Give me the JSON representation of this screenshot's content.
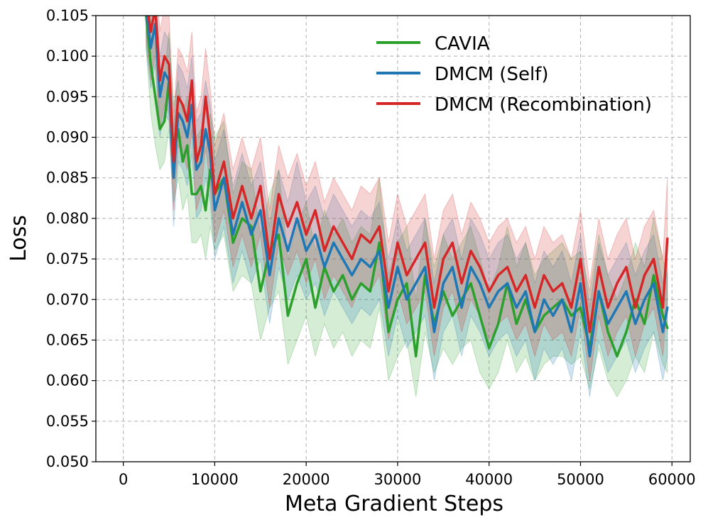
{
  "chart_data": {
    "type": "line",
    "title": "",
    "xlabel": "Meta Gradient Steps",
    "ylabel": "Loss",
    "xlim": [
      -3000,
      62000
    ],
    "ylim": [
      0.05,
      0.105
    ],
    "xticks": [
      0,
      10000,
      20000,
      30000,
      40000,
      50000,
      60000
    ],
    "xtick_labels": [
      "0",
      "10000",
      "20000",
      "30000",
      "40000",
      "50000",
      "60000"
    ],
    "yticks": [
      0.05,
      0.055,
      0.06,
      0.065,
      0.07,
      0.075,
      0.08,
      0.085,
      0.09,
      0.095,
      0.1,
      0.105
    ],
    "ytick_labels": [
      "0.050",
      "0.055",
      "0.060",
      "0.065",
      "0.070",
      "0.075",
      "0.080",
      "0.085",
      "0.090",
      "0.095",
      "0.100",
      "0.105"
    ],
    "grid": true,
    "legend_position": "top-right",
    "x": [
      2500,
      3000,
      3500,
      4000,
      4500,
      5000,
      5500,
      6000,
      6500,
      7000,
      7500,
      8000,
      8500,
      9000,
      9500,
      10000,
      11000,
      12000,
      13000,
      14000,
      15000,
      16000,
      17000,
      18000,
      19000,
      20000,
      21000,
      22000,
      23000,
      24000,
      25000,
      26000,
      27000,
      28000,
      29000,
      30000,
      31000,
      32000,
      33000,
      34000,
      35000,
      36000,
      37000,
      38000,
      39000,
      40000,
      41000,
      42000,
      43000,
      44000,
      45000,
      46000,
      47000,
      48000,
      49000,
      50000,
      51000,
      52000,
      53000,
      54000,
      55000,
      56000,
      57000,
      58000,
      59000,
      59500
    ],
    "series": [
      {
        "name": "CAVIA",
        "color": "#2ca02c",
        "values": [
          0.105,
          0.099,
          0.095,
          0.091,
          0.092,
          0.097,
          0.088,
          0.091,
          0.087,
          0.089,
          0.083,
          0.083,
          0.084,
          0.081,
          0.086,
          0.083,
          0.085,
          0.077,
          0.08,
          0.079,
          0.071,
          0.076,
          0.078,
          0.068,
          0.072,
          0.075,
          0.069,
          0.074,
          0.071,
          0.073,
          0.07,
          0.072,
          0.071,
          0.077,
          0.066,
          0.07,
          0.072,
          0.063,
          0.073,
          0.067,
          0.071,
          0.068,
          0.07,
          0.072,
          0.068,
          0.064,
          0.067,
          0.072,
          0.067,
          0.07,
          0.066,
          0.068,
          0.069,
          0.07,
          0.068,
          0.069,
          0.064,
          0.071,
          0.066,
          0.063,
          0.066,
          0.07,
          0.067,
          0.073,
          0.068,
          0.0665
        ],
        "lower": [
          0.101,
          0.093,
          0.089,
          0.086,
          0.087,
          0.091,
          0.082,
          0.085,
          0.081,
          0.083,
          0.077,
          0.077,
          0.078,
          0.075,
          0.079,
          0.076,
          0.078,
          0.071,
          0.073,
          0.072,
          0.065,
          0.069,
          0.071,
          0.062,
          0.065,
          0.068,
          0.063,
          0.067,
          0.064,
          0.066,
          0.063,
          0.065,
          0.064,
          0.069,
          0.06,
          0.063,
          0.065,
          0.058,
          0.066,
          0.061,
          0.064,
          0.062,
          0.064,
          0.065,
          0.061,
          0.059,
          0.061,
          0.065,
          0.061,
          0.063,
          0.06,
          0.062,
          0.063,
          0.063,
          0.062,
          0.063,
          0.059,
          0.064,
          0.06,
          0.058,
          0.06,
          0.063,
          0.061,
          0.066,
          0.062,
          0.061
        ],
        "upper": [
          0.109,
          0.105,
          0.101,
          0.097,
          0.098,
          0.103,
          0.094,
          0.097,
          0.093,
          0.095,
          0.09,
          0.09,
          0.091,
          0.088,
          0.093,
          0.09,
          0.092,
          0.083,
          0.087,
          0.086,
          0.078,
          0.083,
          0.086,
          0.075,
          0.079,
          0.082,
          0.076,
          0.081,
          0.078,
          0.08,
          0.077,
          0.079,
          0.078,
          0.085,
          0.073,
          0.077,
          0.079,
          0.07,
          0.08,
          0.074,
          0.078,
          0.075,
          0.077,
          0.079,
          0.075,
          0.071,
          0.074,
          0.079,
          0.074,
          0.077,
          0.073,
          0.075,
          0.076,
          0.077,
          0.075,
          0.076,
          0.071,
          0.078,
          0.073,
          0.07,
          0.073,
          0.077,
          0.074,
          0.08,
          0.075,
          0.073
        ]
      },
      {
        "name": "DMCM (Self)",
        "color": "#1f77b4",
        "values": [
          0.106,
          0.101,
          0.104,
          0.095,
          0.098,
          0.097,
          0.085,
          0.093,
          0.092,
          0.09,
          0.094,
          0.086,
          0.087,
          0.091,
          0.088,
          0.081,
          0.085,
          0.078,
          0.082,
          0.078,
          0.081,
          0.073,
          0.08,
          0.076,
          0.08,
          0.076,
          0.078,
          0.074,
          0.077,
          0.075,
          0.073,
          0.075,
          0.074,
          0.076,
          0.069,
          0.074,
          0.07,
          0.072,
          0.074,
          0.066,
          0.072,
          0.074,
          0.069,
          0.074,
          0.072,
          0.069,
          0.071,
          0.072,
          0.069,
          0.071,
          0.066,
          0.07,
          0.068,
          0.07,
          0.066,
          0.072,
          0.063,
          0.071,
          0.067,
          0.069,
          0.071,
          0.067,
          0.07,
          0.072,
          0.066,
          0.069
        ],
        "lower": [
          0.101,
          0.096,
          0.099,
          0.09,
          0.093,
          0.092,
          0.079,
          0.087,
          0.086,
          0.084,
          0.088,
          0.08,
          0.081,
          0.085,
          0.082,
          0.075,
          0.079,
          0.072,
          0.076,
          0.072,
          0.075,
          0.067,
          0.074,
          0.07,
          0.073,
          0.07,
          0.072,
          0.068,
          0.071,
          0.069,
          0.067,
          0.069,
          0.068,
          0.07,
          0.063,
          0.068,
          0.064,
          0.066,
          0.068,
          0.06,
          0.066,
          0.068,
          0.063,
          0.068,
          0.066,
          0.063,
          0.065,
          0.066,
          0.063,
          0.065,
          0.06,
          0.064,
          0.062,
          0.064,
          0.06,
          0.066,
          0.058,
          0.065,
          0.061,
          0.063,
          0.065,
          0.061,
          0.064,
          0.066,
          0.06,
          0.063
        ],
        "upper": [
          0.111,
          0.106,
          0.109,
          0.1,
          0.103,
          0.102,
          0.091,
          0.099,
          0.098,
          0.096,
          0.1,
          0.092,
          0.093,
          0.097,
          0.094,
          0.087,
          0.091,
          0.084,
          0.088,
          0.084,
          0.087,
          0.079,
          0.086,
          0.082,
          0.087,
          0.082,
          0.084,
          0.08,
          0.083,
          0.081,
          0.079,
          0.081,
          0.08,
          0.082,
          0.075,
          0.08,
          0.076,
          0.078,
          0.08,
          0.072,
          0.078,
          0.08,
          0.075,
          0.08,
          0.078,
          0.075,
          0.077,
          0.078,
          0.075,
          0.077,
          0.072,
          0.076,
          0.074,
          0.076,
          0.072,
          0.078,
          0.069,
          0.077,
          0.073,
          0.075,
          0.077,
          0.073,
          0.076,
          0.078,
          0.072,
          0.075
        ]
      },
      {
        "name": "DMCM (Recombination)",
        "color": "#d62728",
        "values": [
          0.107,
          0.103,
          0.106,
          0.097,
          0.1,
          0.099,
          0.087,
          0.095,
          0.094,
          0.092,
          0.097,
          0.087,
          0.089,
          0.095,
          0.09,
          0.083,
          0.087,
          0.08,
          0.084,
          0.08,
          0.084,
          0.075,
          0.083,
          0.079,
          0.082,
          0.078,
          0.081,
          0.076,
          0.079,
          0.077,
          0.075,
          0.078,
          0.077,
          0.079,
          0.071,
          0.077,
          0.073,
          0.075,
          0.077,
          0.069,
          0.075,
          0.077,
          0.072,
          0.076,
          0.074,
          0.071,
          0.073,
          0.074,
          0.071,
          0.073,
          0.069,
          0.073,
          0.071,
          0.072,
          0.069,
          0.075,
          0.066,
          0.074,
          0.069,
          0.072,
          0.074,
          0.069,
          0.073,
          0.075,
          0.069,
          0.0775
        ],
        "lower": [
          0.102,
          0.097,
          0.1,
          0.091,
          0.094,
          0.093,
          0.081,
          0.089,
          0.088,
          0.086,
          0.091,
          0.081,
          0.083,
          0.089,
          0.084,
          0.077,
          0.081,
          0.074,
          0.078,
          0.074,
          0.078,
          0.069,
          0.077,
          0.073,
          0.076,
          0.072,
          0.075,
          0.07,
          0.073,
          0.071,
          0.069,
          0.072,
          0.071,
          0.073,
          0.065,
          0.071,
          0.067,
          0.069,
          0.071,
          0.063,
          0.069,
          0.071,
          0.066,
          0.07,
          0.068,
          0.065,
          0.067,
          0.068,
          0.065,
          0.067,
          0.063,
          0.067,
          0.065,
          0.066,
          0.063,
          0.069,
          0.06,
          0.068,
          0.063,
          0.066,
          0.068,
          0.063,
          0.067,
          0.069,
          0.063,
          0.07
        ],
        "upper": [
          0.112,
          0.109,
          0.112,
          0.103,
          0.106,
          0.105,
          0.093,
          0.101,
          0.1,
          0.098,
          0.103,
          0.093,
          0.095,
          0.101,
          0.096,
          0.089,
          0.093,
          0.086,
          0.09,
          0.086,
          0.09,
          0.081,
          0.089,
          0.085,
          0.088,
          0.084,
          0.087,
          0.082,
          0.085,
          0.083,
          0.081,
          0.084,
          0.083,
          0.085,
          0.077,
          0.083,
          0.079,
          0.081,
          0.083,
          0.075,
          0.081,
          0.083,
          0.078,
          0.082,
          0.08,
          0.077,
          0.079,
          0.08,
          0.077,
          0.079,
          0.075,
          0.079,
          0.077,
          0.078,
          0.075,
          0.081,
          0.072,
          0.08,
          0.075,
          0.078,
          0.08,
          0.075,
          0.079,
          0.081,
          0.075,
          0.085
        ]
      }
    ]
  }
}
